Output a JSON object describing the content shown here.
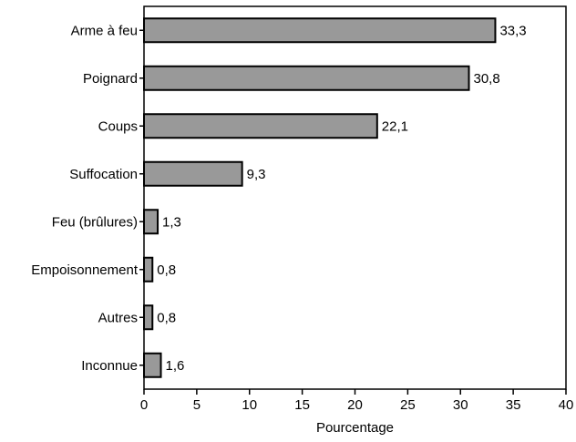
{
  "chart_data": {
    "type": "bar",
    "orientation": "horizontal",
    "categories": [
      "Arme à feu",
      "Poignard",
      "Coups",
      "Suffocation",
      "Feu (brûlures)",
      "Empoisonnement",
      "Autres",
      "Inconnue"
    ],
    "values": [
      33.3,
      30.8,
      22.1,
      9.3,
      1.3,
      0.8,
      0.8,
      1.6
    ],
    "value_labels": [
      "33,3",
      "30,8",
      "22,1",
      "9,3",
      "1,3",
      "0,8",
      "0,8",
      "1,6"
    ],
    "x_ticks": [
      "0",
      "5",
      "10",
      "15",
      "20",
      "25",
      "30",
      "35",
      "40"
    ],
    "xlim": [
      0,
      40
    ],
    "xlabel": "Pourcentage",
    "ylabel": "",
    "title": "",
    "grid": false,
    "bar_color": "#999999",
    "bar_stroke": "#000000"
  }
}
